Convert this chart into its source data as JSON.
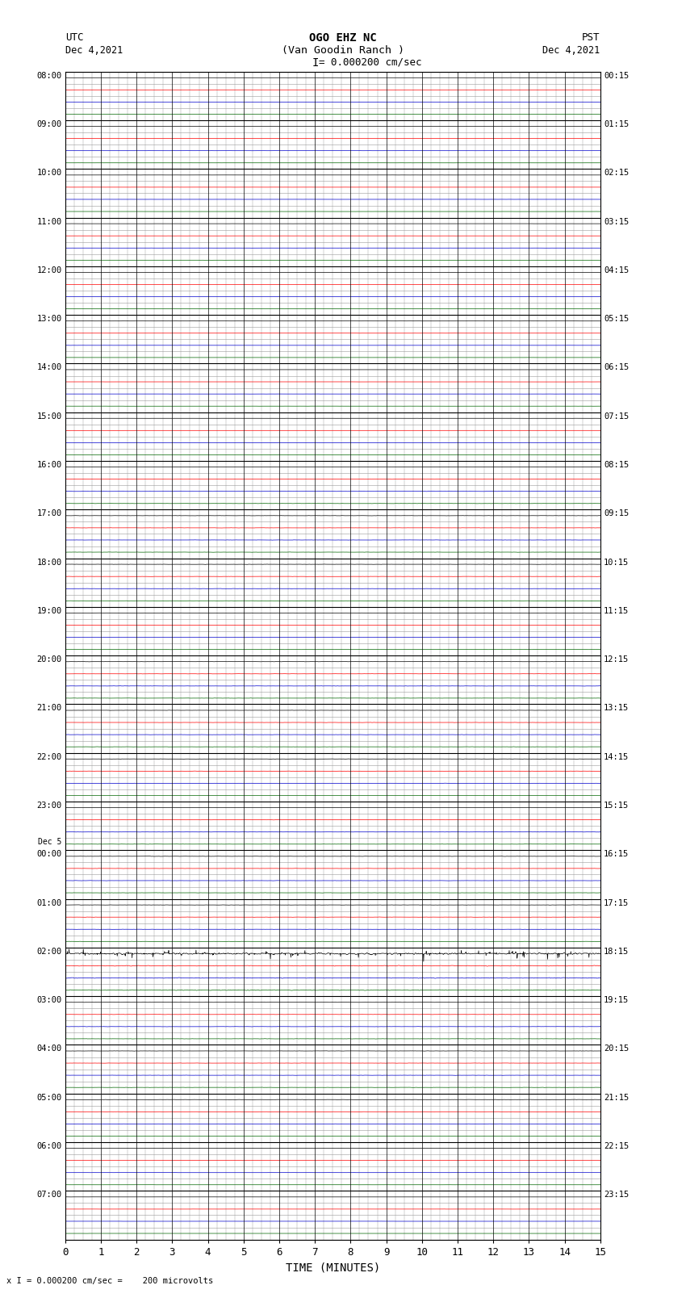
{
  "title_line1": "OGO EHZ NC",
  "title_line2": "(Van Goodin Ranch )",
  "title_line3": "I = 0.000200 cm/sec",
  "xlabel": "TIME (MINUTES)",
  "bottom_note": "x I = 0.000200 cm/sec =    200 microvolts",
  "xlim": [
    0,
    15
  ],
  "xticks": [
    0,
    1,
    2,
    3,
    4,
    5,
    6,
    7,
    8,
    9,
    10,
    11,
    12,
    13,
    14,
    15
  ],
  "left_time_labels": [
    "08:00",
    "09:00",
    "10:00",
    "11:00",
    "12:00",
    "13:00",
    "14:00",
    "15:00",
    "16:00",
    "17:00",
    "18:00",
    "19:00",
    "20:00",
    "21:00",
    "22:00",
    "23:00",
    "Dec 5\n00:00",
    "01:00",
    "02:00",
    "03:00",
    "04:00",
    "05:00",
    "06:00",
    "07:00"
  ],
  "right_time_labels": [
    "00:15",
    "01:15",
    "02:15",
    "03:15",
    "04:15",
    "05:15",
    "06:15",
    "07:15",
    "08:15",
    "09:15",
    "10:15",
    "11:15",
    "12:15",
    "13:15",
    "14:15",
    "15:15",
    "16:15",
    "17:15",
    "18:15",
    "19:15",
    "20:15",
    "21:15",
    "22:15",
    "23:15"
  ],
  "num_major_rows": 24,
  "sub_traces_per_row": 4,
  "bg_color": "#ffffff",
  "trace_color_cycle": [
    "#000000",
    "#ff0000",
    "#0000cc",
    "#006600"
  ],
  "grid_major_color": "#000000",
  "grid_minor_color": "#999999",
  "grid_sub_color": "#cccccc",
  "noise_seed": 42,
  "figure_width": 8.5,
  "figure_height": 16.13,
  "active_rows_high": [
    18
  ],
  "active_rows_medium": [
    8,
    9,
    10,
    11,
    12,
    13,
    14,
    15,
    16,
    17,
    19,
    20,
    21
  ],
  "spike_row": 18,
  "low_amplitude": 0.003,
  "medium_amplitude": 0.008,
  "high_amplitude": 0.025
}
